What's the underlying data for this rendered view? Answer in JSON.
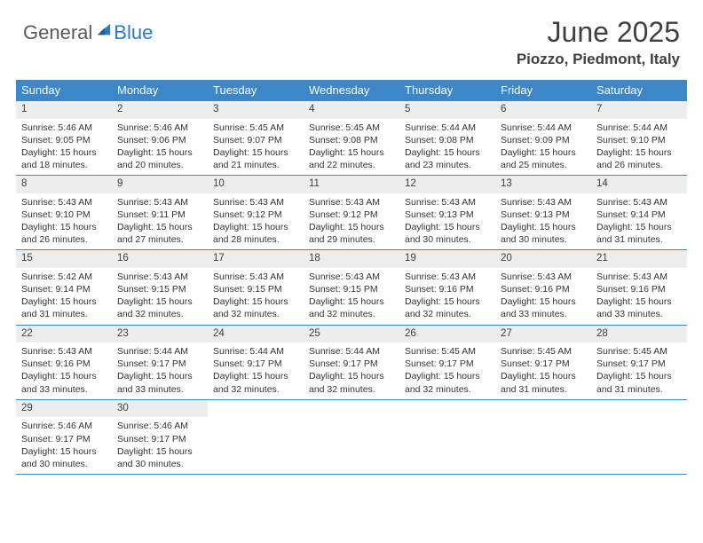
{
  "brand": {
    "part1": "General",
    "part2": "Blue"
  },
  "title": "June 2025",
  "location": "Piozzo, Piedmont, Italy",
  "colors": {
    "header_bg": "#3b87c8",
    "row_border": "#3b87c8",
    "daynum_bg": "#ededed",
    "brand_gray": "#5a5a5a",
    "brand_blue": "#2b7bbf",
    "text": "#333333",
    "bg": "#ffffff"
  },
  "weekdays": [
    "Sunday",
    "Monday",
    "Tuesday",
    "Wednesday",
    "Thursday",
    "Friday",
    "Saturday"
  ],
  "weeks": [
    [
      {
        "n": 1,
        "sunrise": "5:46 AM",
        "sunset": "9:05 PM",
        "daylight": "15 hours and 18 minutes."
      },
      {
        "n": 2,
        "sunrise": "5:46 AM",
        "sunset": "9:06 PM",
        "daylight": "15 hours and 20 minutes."
      },
      {
        "n": 3,
        "sunrise": "5:45 AM",
        "sunset": "9:07 PM",
        "daylight": "15 hours and 21 minutes."
      },
      {
        "n": 4,
        "sunrise": "5:45 AM",
        "sunset": "9:08 PM",
        "daylight": "15 hours and 22 minutes."
      },
      {
        "n": 5,
        "sunrise": "5:44 AM",
        "sunset": "9:08 PM",
        "daylight": "15 hours and 23 minutes."
      },
      {
        "n": 6,
        "sunrise": "5:44 AM",
        "sunset": "9:09 PM",
        "daylight": "15 hours and 25 minutes."
      },
      {
        "n": 7,
        "sunrise": "5:44 AM",
        "sunset": "9:10 PM",
        "daylight": "15 hours and 26 minutes."
      }
    ],
    [
      {
        "n": 8,
        "sunrise": "5:43 AM",
        "sunset": "9:10 PM",
        "daylight": "15 hours and 26 minutes."
      },
      {
        "n": 9,
        "sunrise": "5:43 AM",
        "sunset": "9:11 PM",
        "daylight": "15 hours and 27 minutes."
      },
      {
        "n": 10,
        "sunrise": "5:43 AM",
        "sunset": "9:12 PM",
        "daylight": "15 hours and 28 minutes."
      },
      {
        "n": 11,
        "sunrise": "5:43 AM",
        "sunset": "9:12 PM",
        "daylight": "15 hours and 29 minutes."
      },
      {
        "n": 12,
        "sunrise": "5:43 AM",
        "sunset": "9:13 PM",
        "daylight": "15 hours and 30 minutes."
      },
      {
        "n": 13,
        "sunrise": "5:43 AM",
        "sunset": "9:13 PM",
        "daylight": "15 hours and 30 minutes."
      },
      {
        "n": 14,
        "sunrise": "5:43 AM",
        "sunset": "9:14 PM",
        "daylight": "15 hours and 31 minutes."
      }
    ],
    [
      {
        "n": 15,
        "sunrise": "5:42 AM",
        "sunset": "9:14 PM",
        "daylight": "15 hours and 31 minutes."
      },
      {
        "n": 16,
        "sunrise": "5:43 AM",
        "sunset": "9:15 PM",
        "daylight": "15 hours and 32 minutes."
      },
      {
        "n": 17,
        "sunrise": "5:43 AM",
        "sunset": "9:15 PM",
        "daylight": "15 hours and 32 minutes."
      },
      {
        "n": 18,
        "sunrise": "5:43 AM",
        "sunset": "9:15 PM",
        "daylight": "15 hours and 32 minutes."
      },
      {
        "n": 19,
        "sunrise": "5:43 AM",
        "sunset": "9:16 PM",
        "daylight": "15 hours and 32 minutes."
      },
      {
        "n": 20,
        "sunrise": "5:43 AM",
        "sunset": "9:16 PM",
        "daylight": "15 hours and 33 minutes."
      },
      {
        "n": 21,
        "sunrise": "5:43 AM",
        "sunset": "9:16 PM",
        "daylight": "15 hours and 33 minutes."
      }
    ],
    [
      {
        "n": 22,
        "sunrise": "5:43 AM",
        "sunset": "9:16 PM",
        "daylight": "15 hours and 33 minutes."
      },
      {
        "n": 23,
        "sunrise": "5:44 AM",
        "sunset": "9:17 PM",
        "daylight": "15 hours and 33 minutes."
      },
      {
        "n": 24,
        "sunrise": "5:44 AM",
        "sunset": "9:17 PM",
        "daylight": "15 hours and 32 minutes."
      },
      {
        "n": 25,
        "sunrise": "5:44 AM",
        "sunset": "9:17 PM",
        "daylight": "15 hours and 32 minutes."
      },
      {
        "n": 26,
        "sunrise": "5:45 AM",
        "sunset": "9:17 PM",
        "daylight": "15 hours and 32 minutes."
      },
      {
        "n": 27,
        "sunrise": "5:45 AM",
        "sunset": "9:17 PM",
        "daylight": "15 hours and 31 minutes."
      },
      {
        "n": 28,
        "sunrise": "5:45 AM",
        "sunset": "9:17 PM",
        "daylight": "15 hours and 31 minutes."
      }
    ],
    [
      {
        "n": 29,
        "sunrise": "5:46 AM",
        "sunset": "9:17 PM",
        "daylight": "15 hours and 30 minutes."
      },
      {
        "n": 30,
        "sunrise": "5:46 AM",
        "sunset": "9:17 PM",
        "daylight": "15 hours and 30 minutes."
      },
      null,
      null,
      null,
      null,
      null
    ]
  ],
  "labels": {
    "sunrise": "Sunrise: ",
    "sunset": "Sunset: ",
    "daylight": "Daylight: "
  }
}
